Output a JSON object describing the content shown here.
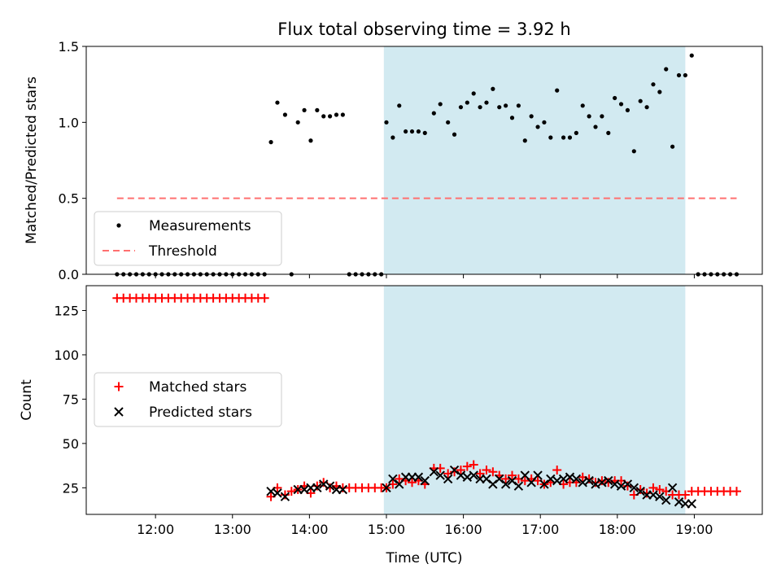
{
  "chart_data": [
    {
      "type": "scatter",
      "title": "Flux total observing time = 3.92 h",
      "xlabel": "",
      "ylabel": "Matched/Predicted stars",
      "x_ticks": [
        "12:00",
        "13:00",
        "14:00",
        "15:00",
        "16:00",
        "17:00",
        "18:00",
        "19:00"
      ],
      "y_ticks": [
        "0.0",
        "0.5",
        "1.0",
        "1.5"
      ],
      "xlim": [
        "11:06",
        "19:53"
      ],
      "ylim": [
        0,
        1.5
      ],
      "grid": false,
      "legend": "lower-left",
      "shaded_interval": [
        "14:58",
        "18:53"
      ],
      "shaded_color": "#add8e6",
      "series": [
        {
          "name": "Measurements",
          "marker": "dot",
          "color": "#000000",
          "points": [
            [
              "11:30",
              0
            ],
            [
              "11:35",
              0
            ],
            [
              "11:40",
              0
            ],
            [
              "11:45",
              0
            ],
            [
              "11:50",
              0
            ],
            [
              "11:55",
              0
            ],
            [
              "12:00",
              0
            ],
            [
              "12:05",
              0
            ],
            [
              "12:10",
              0
            ],
            [
              "12:15",
              0
            ],
            [
              "12:20",
              0
            ],
            [
              "12:25",
              0
            ],
            [
              "12:30",
              0
            ],
            [
              "12:35",
              0
            ],
            [
              "12:40",
              0
            ],
            [
              "12:45",
              0
            ],
            [
              "12:50",
              0
            ],
            [
              "12:55",
              0
            ],
            [
              "13:00",
              0
            ],
            [
              "13:05",
              0
            ],
            [
              "13:10",
              0
            ],
            [
              "13:15",
              0
            ],
            [
              "13:20",
              0
            ],
            [
              "13:25",
              0
            ],
            [
              "13:30",
              0.87
            ],
            [
              "13:35",
              1.13
            ],
            [
              "13:41",
              1.05
            ],
            [
              "13:46",
              0
            ],
            [
              "13:51",
              1.0
            ],
            [
              "13:56",
              1.08
            ],
            [
              "14:01",
              0.88
            ],
            [
              "14:06",
              1.08
            ],
            [
              "14:11",
              1.04
            ],
            [
              "14:16",
              1.04
            ],
            [
              "14:21",
              1.05
            ],
            [
              "14:26",
              1.05
            ],
            [
              "14:31",
              0
            ],
            [
              "14:36",
              0
            ],
            [
              "14:41",
              0
            ],
            [
              "14:46",
              0
            ],
            [
              "14:51",
              0
            ],
            [
              "14:56",
              0
            ],
            [
              "15:00",
              1.0
            ],
            [
              "15:05",
              0.9
            ],
            [
              "15:10",
              1.11
            ],
            [
              "15:15",
              0.94
            ],
            [
              "15:20",
              0.94
            ],
            [
              "15:25",
              0.94
            ],
            [
              "15:30",
              0.93
            ],
            [
              "15:37",
              1.06
            ],
            [
              "15:42",
              1.12
            ],
            [
              "15:48",
              1.0
            ],
            [
              "15:53",
              0.92
            ],
            [
              "15:58",
              1.1
            ],
            [
              "16:03",
              1.13
            ],
            [
              "16:08",
              1.19
            ],
            [
              "16:13",
              1.1
            ],
            [
              "16:18",
              1.13
            ],
            [
              "16:23",
              1.22
            ],
            [
              "16:28",
              1.1
            ],
            [
              "16:33",
              1.11
            ],
            [
              "16:38",
              1.03
            ],
            [
              "16:43",
              1.11
            ],
            [
              "16:48",
              0.88
            ],
            [
              "16:53",
              1.04
            ],
            [
              "16:58",
              0.97
            ],
            [
              "17:03",
              1.0
            ],
            [
              "17:08",
              0.9
            ],
            [
              "17:13",
              1.21
            ],
            [
              "17:18",
              0.9
            ],
            [
              "17:23",
              0.9
            ],
            [
              "17:28",
              0.93
            ],
            [
              "17:33",
              1.11
            ],
            [
              "17:38",
              1.04
            ],
            [
              "17:43",
              0.97
            ],
            [
              "17:48",
              1.04
            ],
            [
              "17:53",
              0.93
            ],
            [
              "17:58",
              1.16
            ],
            [
              "18:03",
              1.12
            ],
            [
              "18:08",
              1.08
            ],
            [
              "18:13",
              0.81
            ],
            [
              "18:18",
              1.14
            ],
            [
              "18:23",
              1.1
            ],
            [
              "18:28",
              1.25
            ],
            [
              "18:33",
              1.2
            ],
            [
              "18:38",
              1.35
            ],
            [
              "18:43",
              0.84
            ],
            [
              "18:48",
              1.31
            ],
            [
              "18:53",
              1.31
            ],
            [
              "18:58",
              1.44
            ],
            [
              "19:03",
              0
            ],
            [
              "19:08",
              0
            ],
            [
              "19:13",
              0
            ],
            [
              "19:18",
              0
            ],
            [
              "19:23",
              0
            ],
            [
              "19:28",
              0
            ],
            [
              "19:33",
              0
            ]
          ]
        },
        {
          "name": "Threshold",
          "line_style": "dashed",
          "color": "#ff7070",
          "points": [
            [
              "11:30",
              0.5
            ],
            [
              "19:33",
              0.5
            ]
          ]
        }
      ]
    },
    {
      "type": "scatter",
      "title": "",
      "xlabel": "Time (UTC)",
      "ylabel": "Count",
      "x_ticks": [
        "12:00",
        "13:00",
        "14:00",
        "15:00",
        "16:00",
        "17:00",
        "18:00",
        "19:00"
      ],
      "y_ticks": [
        "25",
        "50",
        "75",
        "100",
        "125"
      ],
      "xlim": [
        "11:06",
        "19:53"
      ],
      "ylim": [
        10,
        139
      ],
      "grid": false,
      "legend": "center-left",
      "shaded_interval": [
        "14:58",
        "18:53"
      ],
      "shaded_color": "#add8e6",
      "series": [
        {
          "name": "Matched stars",
          "marker": "plus",
          "color": "#ff0000",
          "points": [
            [
              "11:30",
              132
            ],
            [
              "11:35",
              132
            ],
            [
              "11:40",
              132
            ],
            [
              "11:45",
              132
            ],
            [
              "11:50",
              132
            ],
            [
              "11:55",
              132
            ],
            [
              "12:00",
              132
            ],
            [
              "12:05",
              132
            ],
            [
              "12:10",
              132
            ],
            [
              "12:15",
              132
            ],
            [
              "12:20",
              132
            ],
            [
              "12:25",
              132
            ],
            [
              "12:30",
              132
            ],
            [
              "12:35",
              132
            ],
            [
              "12:40",
              132
            ],
            [
              "12:45",
              132
            ],
            [
              "12:50",
              132
            ],
            [
              "12:55",
              132
            ],
            [
              "13:00",
              132
            ],
            [
              "13:05",
              132
            ],
            [
              "13:10",
              132
            ],
            [
              "13:15",
              132
            ],
            [
              "13:20",
              132
            ],
            [
              "13:25",
              132
            ],
            [
              "13:30",
              20
            ],
            [
              "13:35",
              25
            ],
            [
              "13:41",
              21
            ],
            [
              "13:46",
              23
            ],
            [
              "13:51",
              24
            ],
            [
              "13:56",
              26
            ],
            [
              "14:01",
              22
            ],
            [
              "14:06",
              26
            ],
            [
              "14:11",
              28
            ],
            [
              "14:16",
              25
            ],
            [
              "14:21",
              26
            ],
            [
              "14:26",
              25
            ],
            [
              "14:31",
              25
            ],
            [
              "14:36",
              25
            ],
            [
              "14:41",
              25
            ],
            [
              "14:46",
              25
            ],
            [
              "14:51",
              25
            ],
            [
              "14:56",
              25
            ],
            [
              "15:00",
              25
            ],
            [
              "15:05",
              27
            ],
            [
              "15:10",
              30
            ],
            [
              "15:15",
              29
            ],
            [
              "15:20",
              28
            ],
            [
              "15:25",
              29
            ],
            [
              "15:30",
              27
            ],
            [
              "15:37",
              36
            ],
            [
              "15:42",
              36
            ],
            [
              "15:48",
              33
            ],
            [
              "15:53",
              34
            ],
            [
              "15:58",
              35
            ],
            [
              "16:03",
              37
            ],
            [
              "16:08",
              38
            ],
            [
              "16:13",
              33
            ],
            [
              "16:18",
              35
            ],
            [
              "16:23",
              34
            ],
            [
              "16:28",
              32
            ],
            [
              "16:33",
              30
            ],
            [
              "16:38",
              32
            ],
            [
              "16:43",
              30
            ],
            [
              "16:48",
              29
            ],
            [
              "16:53",
              30
            ],
            [
              "16:58",
              29
            ],
            [
              "17:03",
              27
            ],
            [
              "17:08",
              28
            ],
            [
              "17:13",
              35
            ],
            [
              "17:18",
              27
            ],
            [
              "17:23",
              28
            ],
            [
              "17:28",
              28
            ],
            [
              "17:33",
              31
            ],
            [
              "17:38",
              30
            ],
            [
              "17:43",
              28
            ],
            [
              "17:48",
              29
            ],
            [
              "17:53",
              28
            ],
            [
              "17:58",
              29
            ],
            [
              "18:03",
              29
            ],
            [
              "18:08",
              26
            ],
            [
              "18:13",
              21
            ],
            [
              "18:18",
              24
            ],
            [
              "18:23",
              22
            ],
            [
              "18:28",
              25
            ],
            [
              "18:33",
              24
            ],
            [
              "18:38",
              23
            ],
            [
              "18:43",
              21
            ],
            [
              "18:48",
              21
            ],
            [
              "18:53",
              21
            ],
            [
              "18:58",
              23
            ],
            [
              "19:03",
              23
            ],
            [
              "19:08",
              23
            ],
            [
              "19:13",
              23
            ],
            [
              "19:18",
              23
            ],
            [
              "19:23",
              23
            ],
            [
              "19:28",
              23
            ],
            [
              "19:33",
              23
            ]
          ]
        },
        {
          "name": "Predicted stars",
          "marker": "x",
          "color": "#000000",
          "points": [
            [
              "13:30",
              23
            ],
            [
              "13:35",
              22
            ],
            [
              "13:41",
              20
            ],
            [
              "13:51",
              24
            ],
            [
              "13:56",
              24
            ],
            [
              "14:01",
              25
            ],
            [
              "14:06",
              25
            ],
            [
              "14:11",
              27
            ],
            [
              "14:16",
              26
            ],
            [
              "14:21",
              24
            ],
            [
              "14:26",
              24
            ],
            [
              "15:00",
              25
            ],
            [
              "15:05",
              30
            ],
            [
              "15:10",
              27
            ],
            [
              "15:15",
              31
            ],
            [
              "15:20",
              31
            ],
            [
              "15:25",
              31
            ],
            [
              "15:30",
              29
            ],
            [
              "15:37",
              34
            ],
            [
              "15:42",
              32
            ],
            [
              "15:48",
              30
            ],
            [
              "15:53",
              35
            ],
            [
              "15:58",
              32
            ],
            [
              "16:03",
              31
            ],
            [
              "16:08",
              32
            ],
            [
              "16:13",
              30
            ],
            [
              "16:18",
              30
            ],
            [
              "16:23",
              27
            ],
            [
              "16:28",
              30
            ],
            [
              "16:33",
              27
            ],
            [
              "16:38",
              29
            ],
            [
              "16:43",
              26
            ],
            [
              "16:48",
              32
            ],
            [
              "16:53",
              28
            ],
            [
              "16:58",
              32
            ],
            [
              "17:03",
              27
            ],
            [
              "17:08",
              30
            ],
            [
              "17:13",
              29
            ],
            [
              "17:18",
              30
            ],
            [
              "17:23",
              31
            ],
            [
              "17:28",
              30
            ],
            [
              "17:33",
              28
            ],
            [
              "17:38",
              29
            ],
            [
              "17:43",
              27
            ],
            [
              "17:48",
              28
            ],
            [
              "17:53",
              29
            ],
            [
              "17:58",
              27
            ],
            [
              "18:03",
              26
            ],
            [
              "18:08",
              27
            ],
            [
              "18:13",
              25
            ],
            [
              "18:18",
              23
            ],
            [
              "18:23",
              21
            ],
            [
              "18:28",
              21
            ],
            [
              "18:33",
              20
            ],
            [
              "18:38",
              18
            ],
            [
              "18:43",
              25
            ],
            [
              "18:48",
              17
            ],
            [
              "18:53",
              16
            ],
            [
              "18:58",
              16
            ]
          ]
        }
      ]
    }
  ]
}
